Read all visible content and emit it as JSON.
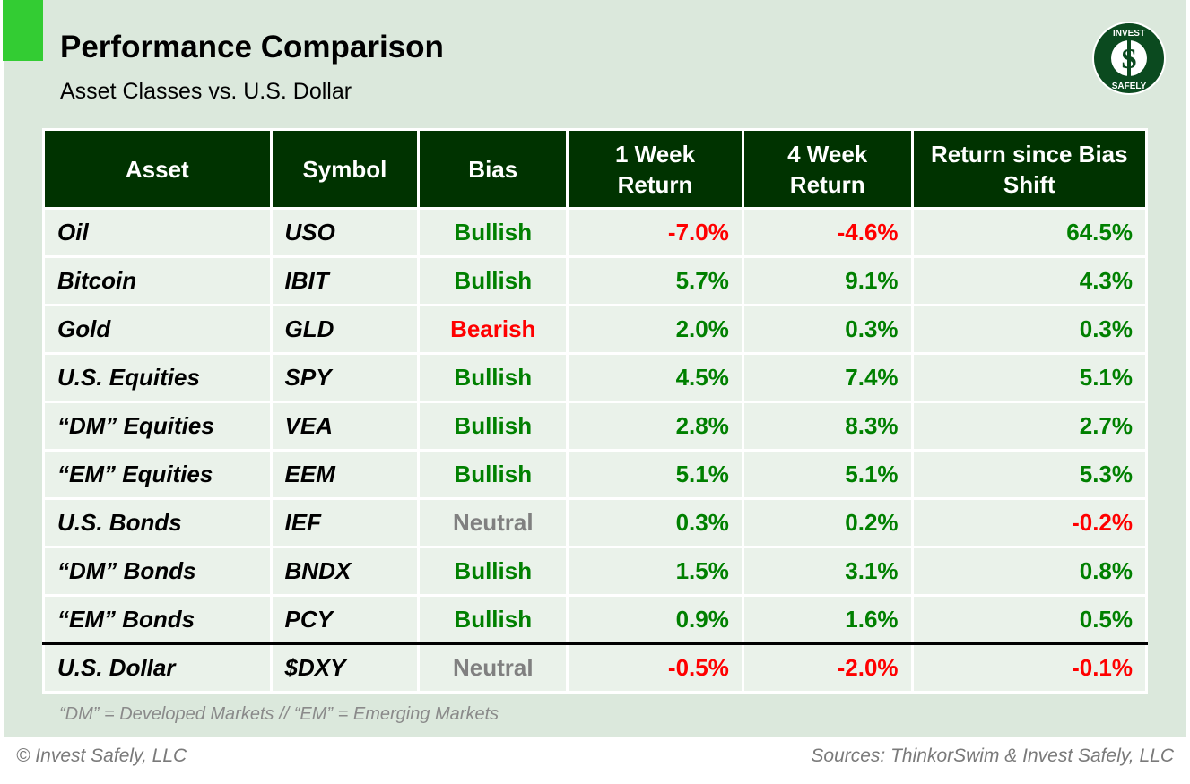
{
  "header": {
    "title": "Performance Comparison",
    "subtitle": "Asset Classes vs. U.S. Dollar",
    "logo_text": "INVEST $ SAFELY"
  },
  "colors": {
    "header_bg": "#003300",
    "accent": "#33cc33",
    "positive": "#008000",
    "negative": "#ff0000",
    "neutral": "#808080"
  },
  "chart_data": {
    "type": "table",
    "columns": [
      "Asset",
      "Symbol",
      "Bias",
      "1 Week Return",
      "4 Week Return",
      "Return since Bias Shift"
    ],
    "rows": [
      {
        "asset": "Oil",
        "symbol": "USO",
        "bias": "Bullish",
        "w1": "-7.0%",
        "w4": "-4.6%",
        "since": "64.5%"
      },
      {
        "asset": "Bitcoin",
        "symbol": "IBIT",
        "bias": "Bullish",
        "w1": "5.7%",
        "w4": "9.1%",
        "since": "4.3%"
      },
      {
        "asset": "Gold",
        "symbol": "GLD",
        "bias": "Bearish",
        "w1": "2.0%",
        "w4": "0.3%",
        "since": "0.3%"
      },
      {
        "asset": "U.S. Equities",
        "symbol": "SPY",
        "bias": "Bullish",
        "w1": "4.5%",
        "w4": "7.4%",
        "since": "5.1%"
      },
      {
        "asset": "“DM” Equities",
        "symbol": "VEA",
        "bias": "Bullish",
        "w1": "2.8%",
        "w4": "8.3%",
        "since": "2.7%"
      },
      {
        "asset": "“EM” Equities",
        "symbol": "EEM",
        "bias": "Bullish",
        "w1": "5.1%",
        "w4": "5.1%",
        "since": "5.3%"
      },
      {
        "asset": "U.S. Bonds",
        "symbol": "IEF",
        "bias": "Neutral",
        "w1": "0.3%",
        "w4": "0.2%",
        "since": "-0.2%"
      },
      {
        "asset": "“DM” Bonds",
        "symbol": "BNDX",
        "bias": "Bullish",
        "w1": "1.5%",
        "w4": "3.1%",
        "since": "0.8%"
      },
      {
        "asset": "“EM” Bonds",
        "symbol": "PCY",
        "bias": "Bullish",
        "w1": "0.9%",
        "w4": "1.6%",
        "since": "0.5%"
      },
      {
        "asset": "U.S. Dollar",
        "symbol": "$DXY",
        "bias": "Neutral",
        "w1": "-0.5%",
        "w4": "-2.0%",
        "since": "-0.1%"
      }
    ]
  },
  "note": "“DM” = Developed Markets // “EM” = Emerging Markets",
  "footer": {
    "left": "© Invest Safely, LLC",
    "right": "Sources: ThinkorSwim & Invest Safely, LLC"
  }
}
